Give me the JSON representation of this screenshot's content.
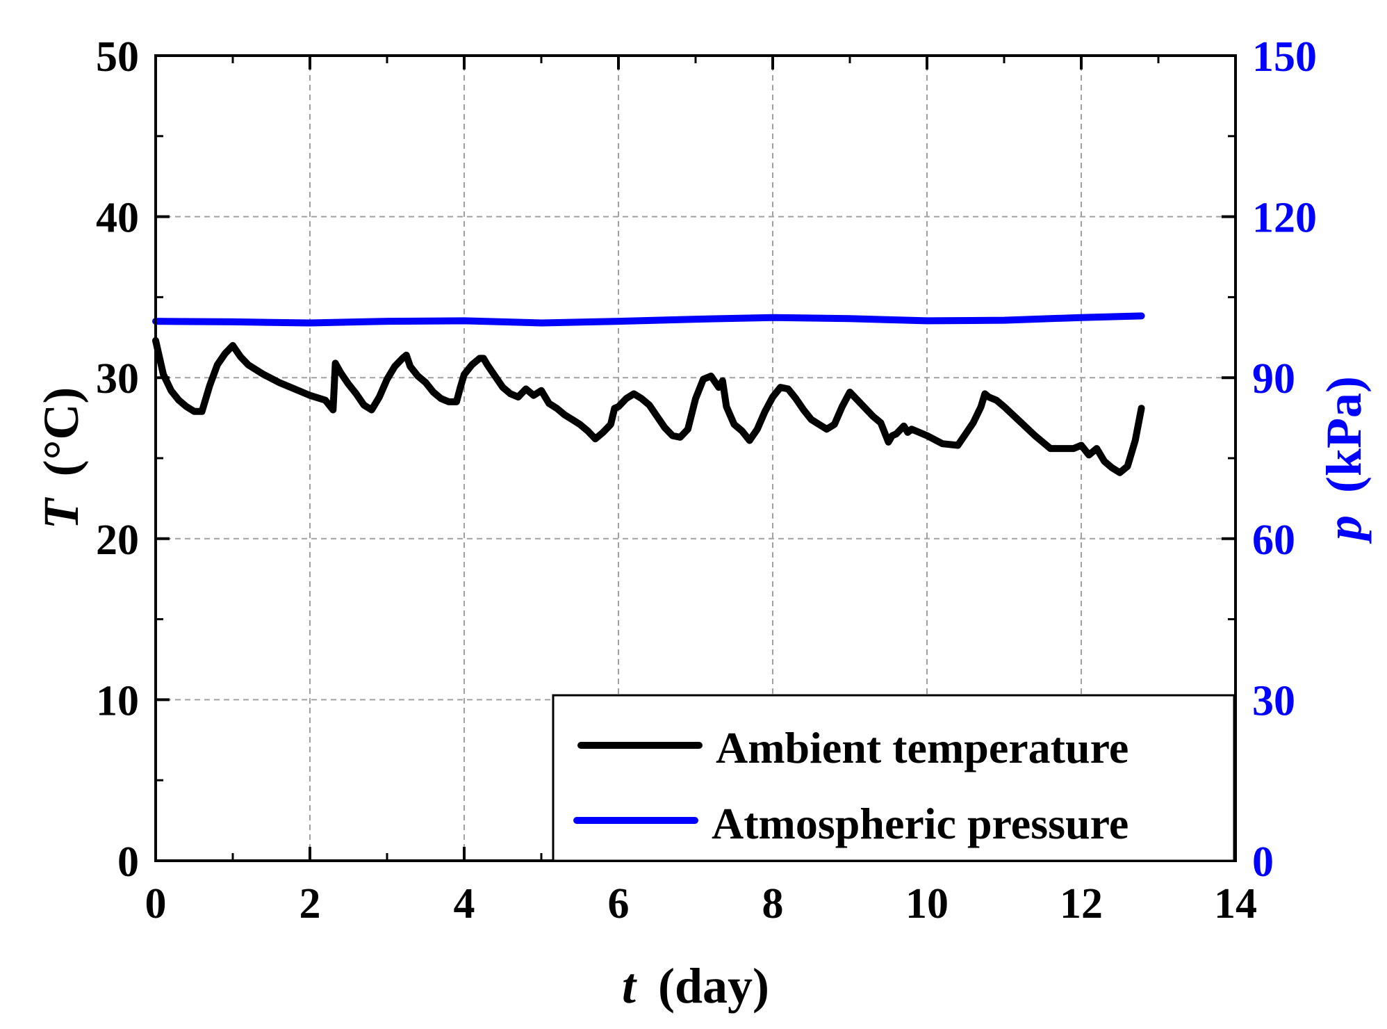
{
  "colors": {
    "temperature": "#000000",
    "pressure": "#0000ff",
    "grid": "#a0a0a0",
    "axis": "#000000"
  },
  "chart_data": {
    "type": "line",
    "xlabel_italic": "t",
    "xlabel_unit": "(day)",
    "ylabel_italic": "T",
    "ylabel_unit": "(°C)",
    "y2label_italic": "p",
    "y2label_unit": "(kPa)",
    "xlim": [
      0,
      14
    ],
    "ylim": [
      0,
      50
    ],
    "y2lim": [
      0,
      150
    ],
    "xticks": [
      0,
      2,
      4,
      6,
      8,
      10,
      12,
      14
    ],
    "yticks": [
      0,
      10,
      20,
      30,
      40,
      50
    ],
    "y2ticks": [
      0,
      30,
      60,
      90,
      120,
      150
    ],
    "grid": true,
    "legend_position": "bottom-right",
    "series": [
      {
        "name": "Ambient temperature",
        "axis": "left",
        "x": [
          0,
          0.1,
          0.2,
          0.3,
          0.4,
          0.5,
          0.6,
          0.7,
          0.8,
          0.9,
          1.0,
          1.1,
          1.2,
          1.4,
          1.6,
          1.8,
          2.0,
          2.2,
          2.3,
          2.33,
          2.4,
          2.5,
          2.6,
          2.7,
          2.8,
          2.9,
          3.0,
          3.1,
          3.2,
          3.25,
          3.3,
          3.4,
          3.5,
          3.6,
          3.7,
          3.8,
          3.9,
          3.95,
          4.0,
          4.1,
          4.2,
          4.25,
          4.3,
          4.4,
          4.5,
          4.6,
          4.7,
          4.8,
          4.9,
          5.0,
          5.1,
          5.2,
          5.3,
          5.4,
          5.5,
          5.6,
          5.7,
          5.8,
          5.9,
          5.95,
          6.0,
          6.1,
          6.2,
          6.3,
          6.4,
          6.5,
          6.6,
          6.7,
          6.8,
          6.9,
          7.0,
          7.1,
          7.2,
          7.3,
          7.35,
          7.4,
          7.5,
          7.6,
          7.7,
          7.8,
          7.9,
          8.0,
          8.1,
          8.2,
          8.3,
          8.4,
          8.5,
          8.6,
          8.7,
          8.8,
          8.9,
          9.0,
          9.1,
          9.2,
          9.3,
          9.4,
          9.5,
          9.55,
          9.6,
          9.7,
          9.75,
          9.8,
          9.9,
          10.0,
          10.2,
          10.4,
          10.5,
          10.6,
          10.7,
          10.75,
          10.8,
          10.9,
          11.0,
          11.2,
          11.4,
          11.6,
          11.8,
          11.9,
          12.0,
          12.1,
          12.2,
          12.3,
          12.4,
          12.5,
          12.6,
          12.7,
          12.78
        ],
        "y": [
          32.3,
          30.2,
          29.2,
          28.6,
          28.2,
          27.9,
          27.9,
          29.5,
          30.8,
          31.5,
          32.0,
          31.3,
          30.8,
          30.2,
          29.7,
          29.3,
          28.9,
          28.6,
          28.0,
          30.9,
          30.3,
          29.6,
          29.0,
          28.3,
          28.0,
          28.8,
          29.9,
          30.7,
          31.2,
          31.4,
          30.7,
          30.1,
          29.7,
          29.1,
          28.7,
          28.5,
          28.5,
          29.4,
          30.2,
          30.8,
          31.2,
          31.2,
          30.8,
          30.1,
          29.4,
          29.0,
          28.8,
          29.3,
          28.9,
          29.2,
          28.4,
          28.1,
          27.7,
          27.4,
          27.1,
          26.7,
          26.2,
          26.6,
          27.1,
          28.1,
          28.2,
          28.7,
          29.0,
          28.7,
          28.3,
          27.6,
          26.9,
          26.4,
          26.3,
          26.8,
          28.7,
          29.9,
          30.1,
          29.4,
          29.8,
          28.2,
          27.1,
          26.7,
          26.1,
          26.8,
          27.9,
          28.8,
          29.4,
          29.3,
          28.7,
          28.0,
          27.4,
          27.1,
          26.8,
          27.1,
          28.2,
          29.1,
          28.6,
          28.1,
          27.6,
          27.2,
          26.0,
          26.4,
          26.5,
          27.0,
          26.6,
          26.8,
          26.6,
          26.4,
          25.9,
          25.8,
          26.5,
          27.2,
          28.2,
          29.0,
          28.8,
          28.6,
          28.2,
          27.3,
          26.4,
          25.6,
          25.6,
          25.6,
          25.8,
          25.2,
          25.6,
          24.8,
          24.4,
          24.1,
          24.5,
          26.1,
          28.1
        ]
      },
      {
        "name": "Atmospheric pressure",
        "axis": "right",
        "x": [
          0,
          1,
          2,
          3,
          4,
          5,
          6,
          7,
          8,
          9,
          10,
          11,
          12,
          12.78
        ],
        "y": [
          100.5,
          100.4,
          100.2,
          100.5,
          100.6,
          100.2,
          100.5,
          100.9,
          101.2,
          101.0,
          100.6,
          100.7,
          101.2,
          101.5
        ]
      }
    ]
  }
}
